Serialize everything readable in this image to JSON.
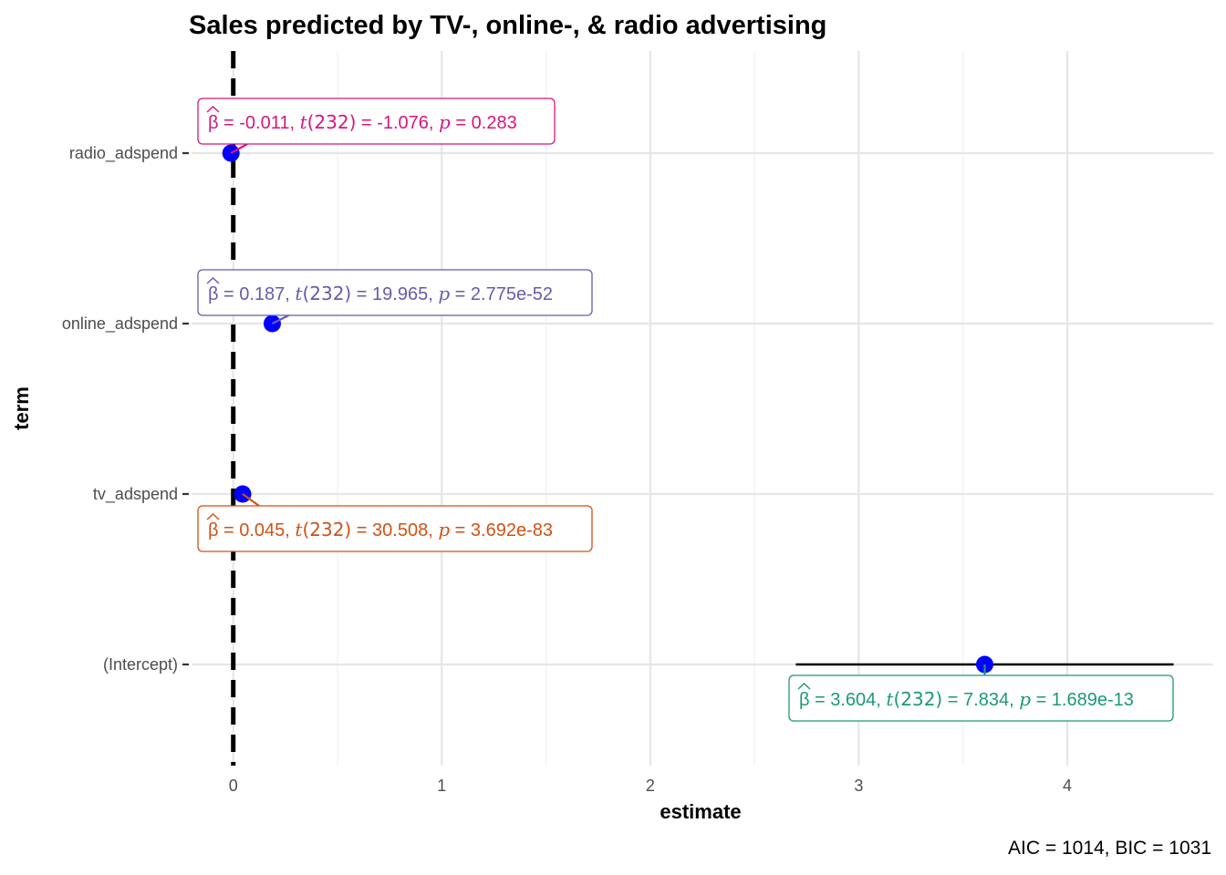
{
  "chart_data": {
    "type": "scatter",
    "title": "Sales predicted by TV-, online-, & radio advertising",
    "xlabel": "estimate",
    "ylabel": "term",
    "caption": "AIC = 1014, BIC = 1031",
    "xlim": [
      -0.2,
      4.7
    ],
    "x_ticks": [
      0,
      1,
      2,
      3,
      4
    ],
    "x_tick_labels": [
      "0",
      "1",
      "2",
      "3",
      "4"
    ],
    "reference_line": 0,
    "grid": true,
    "point_color": "#0000ff",
    "terms": [
      {
        "term": "radio_adspend",
        "estimate": -0.011,
        "conf_low": -0.03,
        "conf_high": 0.008,
        "label_color": "#d6167e",
        "label": {
          "beta": "= -0.011, ",
          "df": "(232)",
          "t_eq": " = -1.076, ",
          "p_eq": " = 0.283"
        }
      },
      {
        "term": "online_adspend",
        "estimate": 0.187,
        "conf_low": 0.169,
        "conf_high": 0.205,
        "label_color": "#6a5aa8",
        "label": {
          "beta": "= 0.187, ",
          "df": "(232)",
          "t_eq": " = 19.965, ",
          "p_eq": " = 2.775e-52"
        }
      },
      {
        "term": "tv_adspend",
        "estimate": 0.045,
        "conf_low": 0.042,
        "conf_high": 0.048,
        "label_color": "#cf5215",
        "label": {
          "beta": "= 0.045, ",
          "df": "(232)",
          "t_eq": " = 30.508, ",
          "p_eq": " = 3.692e-83"
        }
      },
      {
        "term": "(Intercept)",
        "estimate": 3.604,
        "conf_low": 2.698,
        "conf_high": 4.51,
        "label_color": "#1b9976",
        "label": {
          "beta": "= 3.604, ",
          "df": "(232)",
          "t_eq": " = 7.834, ",
          "p_eq": " = 1.689e-13"
        }
      }
    ]
  }
}
